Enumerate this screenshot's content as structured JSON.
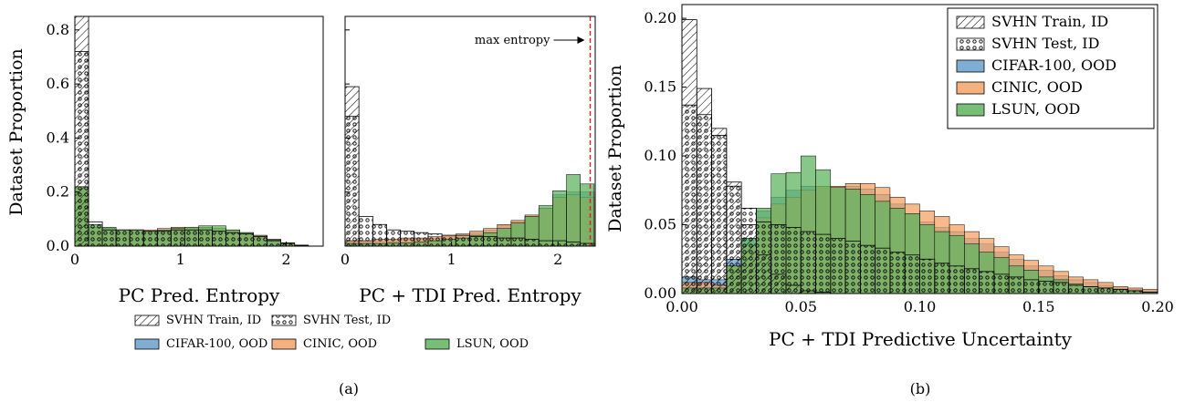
{
  "colors": {
    "cifar": "#6a9fcc",
    "cinic": "#f3a366",
    "lsun": "#5fb45f",
    "maxline": "#d62728",
    "edge": "#000000"
  },
  "legend_a": [
    {
      "label": "SVHN Train, ID",
      "style": "hatch"
    },
    {
      "label": "SVHN Test, ID",
      "style": "dots"
    },
    {
      "label": "CIFAR-100, OOD",
      "style": "cifar"
    },
    {
      "label": "CINIC, OOD",
      "style": "cinic"
    },
    {
      "label": "LSUN, OOD",
      "style": "lsun"
    }
  ],
  "legend_b": [
    {
      "label": "SVHN Train, ID",
      "style": "hatch"
    },
    {
      "label": "SVHN Test, ID",
      "style": "dots"
    },
    {
      "label": "CIFAR-100, OOD",
      "style": "cifar"
    },
    {
      "label": "CINIC, OOD",
      "style": "cinic"
    },
    {
      "label": "LSUN, OOD",
      "style": "lsun"
    }
  ],
  "captions": {
    "a": "(a)",
    "b": "(b)"
  },
  "chart_data": [
    {
      "type": "bar",
      "panel": "a-left",
      "xlabel": "PC Pred. Entropy",
      "ylabel": "Dataset Proportion",
      "xlim": [
        0,
        2.35
      ],
      "ylim": [
        0,
        0.85
      ],
      "xticks": [
        0,
        1,
        2
      ],
      "yticks": [
        0.0,
        0.2,
        0.4,
        0.6,
        0.8
      ],
      "bin_width": 0.13,
      "bins_start": 0,
      "series": [
        {
          "name": "SVHN Train, ID",
          "style": "hatch",
          "values": [
            0.88,
            0.0,
            0.0,
            0.0,
            0.0,
            0.0,
            0.0,
            0.0,
            0.0,
            0.0,
            0.0,
            0.0,
            0.0,
            0.0,
            0.0,
            0.0,
            0.0,
            0.0
          ]
        },
        {
          "name": "SVHN Test, ID",
          "style": "dots",
          "values": [
            0.72,
            0.09,
            0.06,
            0.06,
            0.06,
            0.055,
            0.055,
            0.06,
            0.06,
            0.06,
            0.055,
            0.05,
            0.045,
            0.035,
            0.02,
            0.01,
            0.003,
            0.0
          ]
        },
        {
          "name": "CIFAR-100, OOD",
          "style": "cifar",
          "values": [
            0.22,
            0.07,
            0.065,
            0.06,
            0.06,
            0.055,
            0.06,
            0.065,
            0.065,
            0.07,
            0.065,
            0.06,
            0.05,
            0.04,
            0.025,
            0.012,
            0.004,
            0.0
          ]
        },
        {
          "name": "CINIC, OOD",
          "style": "cinic",
          "values": [
            0.22,
            0.07,
            0.065,
            0.06,
            0.06,
            0.06,
            0.065,
            0.07,
            0.07,
            0.07,
            0.065,
            0.06,
            0.05,
            0.04,
            0.025,
            0.012,
            0.004,
            0.0
          ]
        },
        {
          "name": "LSUN, OOD",
          "style": "lsun",
          "values": [
            0.22,
            0.08,
            0.07,
            0.06,
            0.06,
            0.055,
            0.06,
            0.065,
            0.07,
            0.075,
            0.075,
            0.06,
            0.05,
            0.035,
            0.022,
            0.01,
            0.003,
            0.0
          ]
        }
      ]
    },
    {
      "type": "bar",
      "panel": "a-right",
      "xlabel": "PC + TDI Pred. Entropy",
      "ylabel": "",
      "xlim": [
        0,
        2.35
      ],
      "ylim": [
        0,
        0.85
      ],
      "xticks": [
        0,
        1,
        2
      ],
      "yticks": [
        0.0,
        0.2,
        0.4,
        0.6,
        0.8
      ],
      "bin_width": 0.13,
      "bins_start": 0,
      "annotation": {
        "text": "max entropy",
        "x": 2.3026
      },
      "series": [
        {
          "name": "SVHN Train, ID",
          "style": "hatch",
          "values": [
            0.59,
            0.0,
            0.0,
            0.0,
            0.0,
            0.0,
            0.0,
            0.0,
            0.0,
            0.0,
            0.0,
            0.0,
            0.0,
            0.0,
            0.0,
            0.0,
            0.0,
            0.0
          ]
        },
        {
          "name": "SVHN Test, ID",
          "style": "dots",
          "values": [
            0.48,
            0.11,
            0.08,
            0.06,
            0.055,
            0.05,
            0.045,
            0.04,
            0.04,
            0.035,
            0.035,
            0.03,
            0.03,
            0.025,
            0.02,
            0.02,
            0.015,
            0.01
          ]
        },
        {
          "name": "CIFAR-100, OOD",
          "style": "cifar",
          "values": [
            0.02,
            0.02,
            0.02,
            0.02,
            0.025,
            0.025,
            0.03,
            0.035,
            0.04,
            0.05,
            0.06,
            0.075,
            0.09,
            0.11,
            0.14,
            0.19,
            0.2,
            0.2
          ]
        },
        {
          "name": "CINIC, OOD",
          "style": "cinic",
          "values": [
            0.02,
            0.02,
            0.025,
            0.025,
            0.03,
            0.03,
            0.035,
            0.04,
            0.045,
            0.055,
            0.065,
            0.08,
            0.095,
            0.115,
            0.14,
            0.18,
            0.19,
            0.18
          ]
        },
        {
          "name": "LSUN, OOD",
          "style": "lsun",
          "values": [
            0.01,
            0.01,
            0.01,
            0.012,
            0.012,
            0.015,
            0.02,
            0.025,
            0.03,
            0.04,
            0.05,
            0.065,
            0.085,
            0.11,
            0.15,
            0.205,
            0.265,
            0.23
          ]
        }
      ]
    },
    {
      "type": "bar",
      "panel": "b",
      "xlabel": "PC + TDI Predictive Uncertainty",
      "ylabel": "Dataset Proportion",
      "xlim": [
        0,
        0.2
      ],
      "ylim": [
        0,
        0.21
      ],
      "xticks": [
        0.0,
        0.05,
        0.1,
        0.15,
        0.2
      ],
      "yticks": [
        0.0,
        0.05,
        0.1,
        0.15,
        0.2
      ],
      "bin_width": 0.00625,
      "bins_start": 0,
      "series": [
        {
          "name": "SVHN Train, ID",
          "style": "hatch",
          "values": [
            0.199,
            0.149,
            0.12,
            0.081,
            0.05,
            0.028,
            0.014,
            0.006,
            0.002,
            0.001,
            0,
            0,
            0,
            0,
            0,
            0,
            0,
            0,
            0,
            0,
            0,
            0,
            0,
            0,
            0,
            0,
            0,
            0,
            0,
            0,
            0,
            0
          ]
        },
        {
          "name": "SVHN Test, ID",
          "style": "dots",
          "values": [
            0.137,
            0.13,
            0.115,
            0.078,
            0.062,
            0.052,
            0.05,
            0.048,
            0.045,
            0.043,
            0.04,
            0.038,
            0.035,
            0.033,
            0.03,
            0.028,
            0.025,
            0.022,
            0.02,
            0.018,
            0.016,
            0.014,
            0.012,
            0.01,
            0.009,
            0.008,
            0.006,
            0.005,
            0.004,
            0.003,
            0.002,
            0.001
          ]
        },
        {
          "name": "CIFAR-100, OOD",
          "style": "cifar",
          "values": [
            0.012,
            0.01,
            0.01,
            0.025,
            0.04,
            0.06,
            0.07,
            0.075,
            0.078,
            0.078,
            0.077,
            0.078,
            0.076,
            0.072,
            0.065,
            0.058,
            0.052,
            0.048,
            0.045,
            0.04,
            0.036,
            0.03,
            0.025,
            0.02,
            0.017,
            0.013,
            0.01,
            0.008,
            0.006,
            0.004,
            0.003,
            0.002
          ]
        },
        {
          "name": "CINIC, OOD",
          "style": "cinic",
          "values": [
            0.008,
            0.008,
            0.006,
            0.02,
            0.035,
            0.055,
            0.065,
            0.07,
            0.075,
            0.078,
            0.078,
            0.08,
            0.08,
            0.077,
            0.07,
            0.065,
            0.06,
            0.056,
            0.05,
            0.045,
            0.04,
            0.034,
            0.028,
            0.024,
            0.02,
            0.016,
            0.012,
            0.01,
            0.008,
            0.005,
            0.004,
            0.003
          ]
        },
        {
          "name": "LSUN, OOD",
          "style": "lsun",
          "values": [
            0.004,
            0.004,
            0.004,
            0.02,
            0.04,
            0.062,
            0.087,
            0.088,
            0.1,
            0.09,
            0.077,
            0.076,
            0.072,
            0.067,
            0.062,
            0.058,
            0.05,
            0.045,
            0.042,
            0.036,
            0.03,
            0.026,
            0.02,
            0.017,
            0.012,
            0.01,
            0.007,
            0.005,
            0.004,
            0.003,
            0.002,
            0.001
          ]
        }
      ]
    }
  ]
}
